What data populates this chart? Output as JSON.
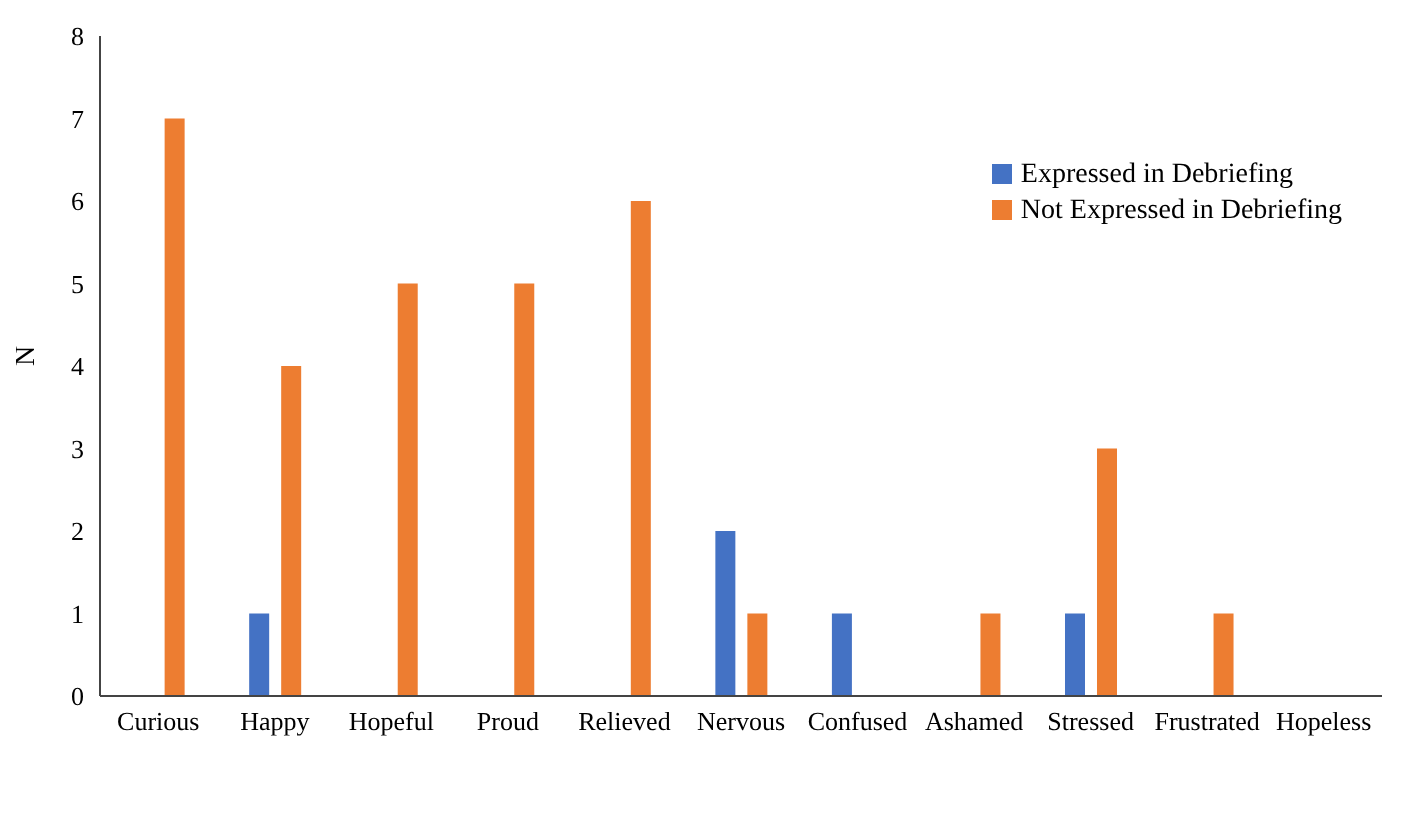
{
  "chart_data": {
    "type": "bar",
    "ylabel": "N",
    "categories": [
      "Curious",
      "Happy",
      "Hopeful",
      "Proud",
      "Relieved",
      "Nervous",
      "Confused",
      "Ashamed",
      "Stressed",
      "Frustrated",
      "Hopeless"
    ],
    "series": [
      {
        "name": "Expressed in Debriefing",
        "color": "#4472c4",
        "values": [
          0,
          1,
          0,
          0,
          0,
          2,
          1,
          0,
          1,
          0,
          0
        ]
      },
      {
        "name": "Not Expressed in Debriefing",
        "color": "#ed7d31",
        "values": [
          7,
          4,
          5,
          5,
          6,
          1,
          0,
          1,
          3,
          1,
          0
        ]
      }
    ],
    "ylim": [
      0,
      8
    ],
    "yticks": [
      0,
      1,
      2,
      3,
      4,
      5,
      6,
      7,
      8
    ],
    "grid": false,
    "legend": "top right"
  }
}
